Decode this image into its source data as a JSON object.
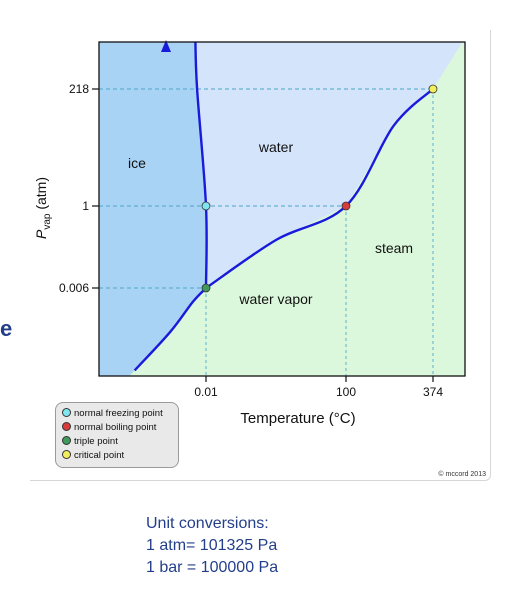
{
  "edge_letter": "e",
  "chart_data": {
    "type": "line",
    "xlabel": "Temperature (°C)",
    "ylabel_main": "P",
    "ylabel_sub": "vap",
    "ylabel_unit": "(atm)",
    "x_ticks": [
      "0.01",
      "100",
      "374"
    ],
    "y_ticks": [
      "0.006",
      "1",
      "218"
    ],
    "regions": [
      {
        "label": "ice",
        "color": "#a9d3f5"
      },
      {
        "label": "water",
        "color": "#d3e4fb"
      },
      {
        "label": "steam",
        "color": "#dcf8dc"
      },
      {
        "label": "water vapor",
        "color": "#dcf8dc"
      }
    ],
    "series": [
      {
        "points": [
          [
            -80,
            1e-05
          ],
          [
            -40,
            0.0002
          ],
          [
            -15,
            0.002
          ],
          [
            0.01,
            0.006
          ]
        ]
      },
      {
        "points": [
          [
            0.01,
            0.006
          ],
          [
            0,
            1
          ],
          [
            -10,
            218
          ],
          [
            -12,
            1000
          ]
        ]
      },
      {
        "points": [
          [
            0.01,
            0.006
          ],
          [
            50,
            0.12
          ],
          [
            100,
            1
          ],
          [
            250,
            40
          ],
          [
            374,
            218
          ]
        ]
      }
    ],
    "points": [
      {
        "label": "normal freezing point",
        "x": 0,
        "y": 1,
        "color": "#7fe6ef"
      },
      {
        "label": "normal boiling point",
        "x": 100,
        "y": 1,
        "color": "#d83b3b"
      },
      {
        "label": "triple point",
        "x": 0.01,
        "y": 0.006,
        "color": "#3f9a5c"
      },
      {
        "label": "critical point",
        "x": 374,
        "y": 218,
        "color": "#f3ee5c"
      }
    ],
    "credit": "© mccord 2013"
  },
  "legend": [
    {
      "label": "normal freezing point",
      "color": "#7fe6ef"
    },
    {
      "label": "normal boiling point",
      "color": "#d83b3b"
    },
    {
      "label": "triple point",
      "color": "#3f9a5c"
    },
    {
      "label": "critical point",
      "color": "#f3ee5c"
    }
  ],
  "notes": {
    "title": "Unit conversions:",
    "line1": "1 atm= 101325 Pa",
    "line2": "1 bar = 100000 Pa"
  }
}
